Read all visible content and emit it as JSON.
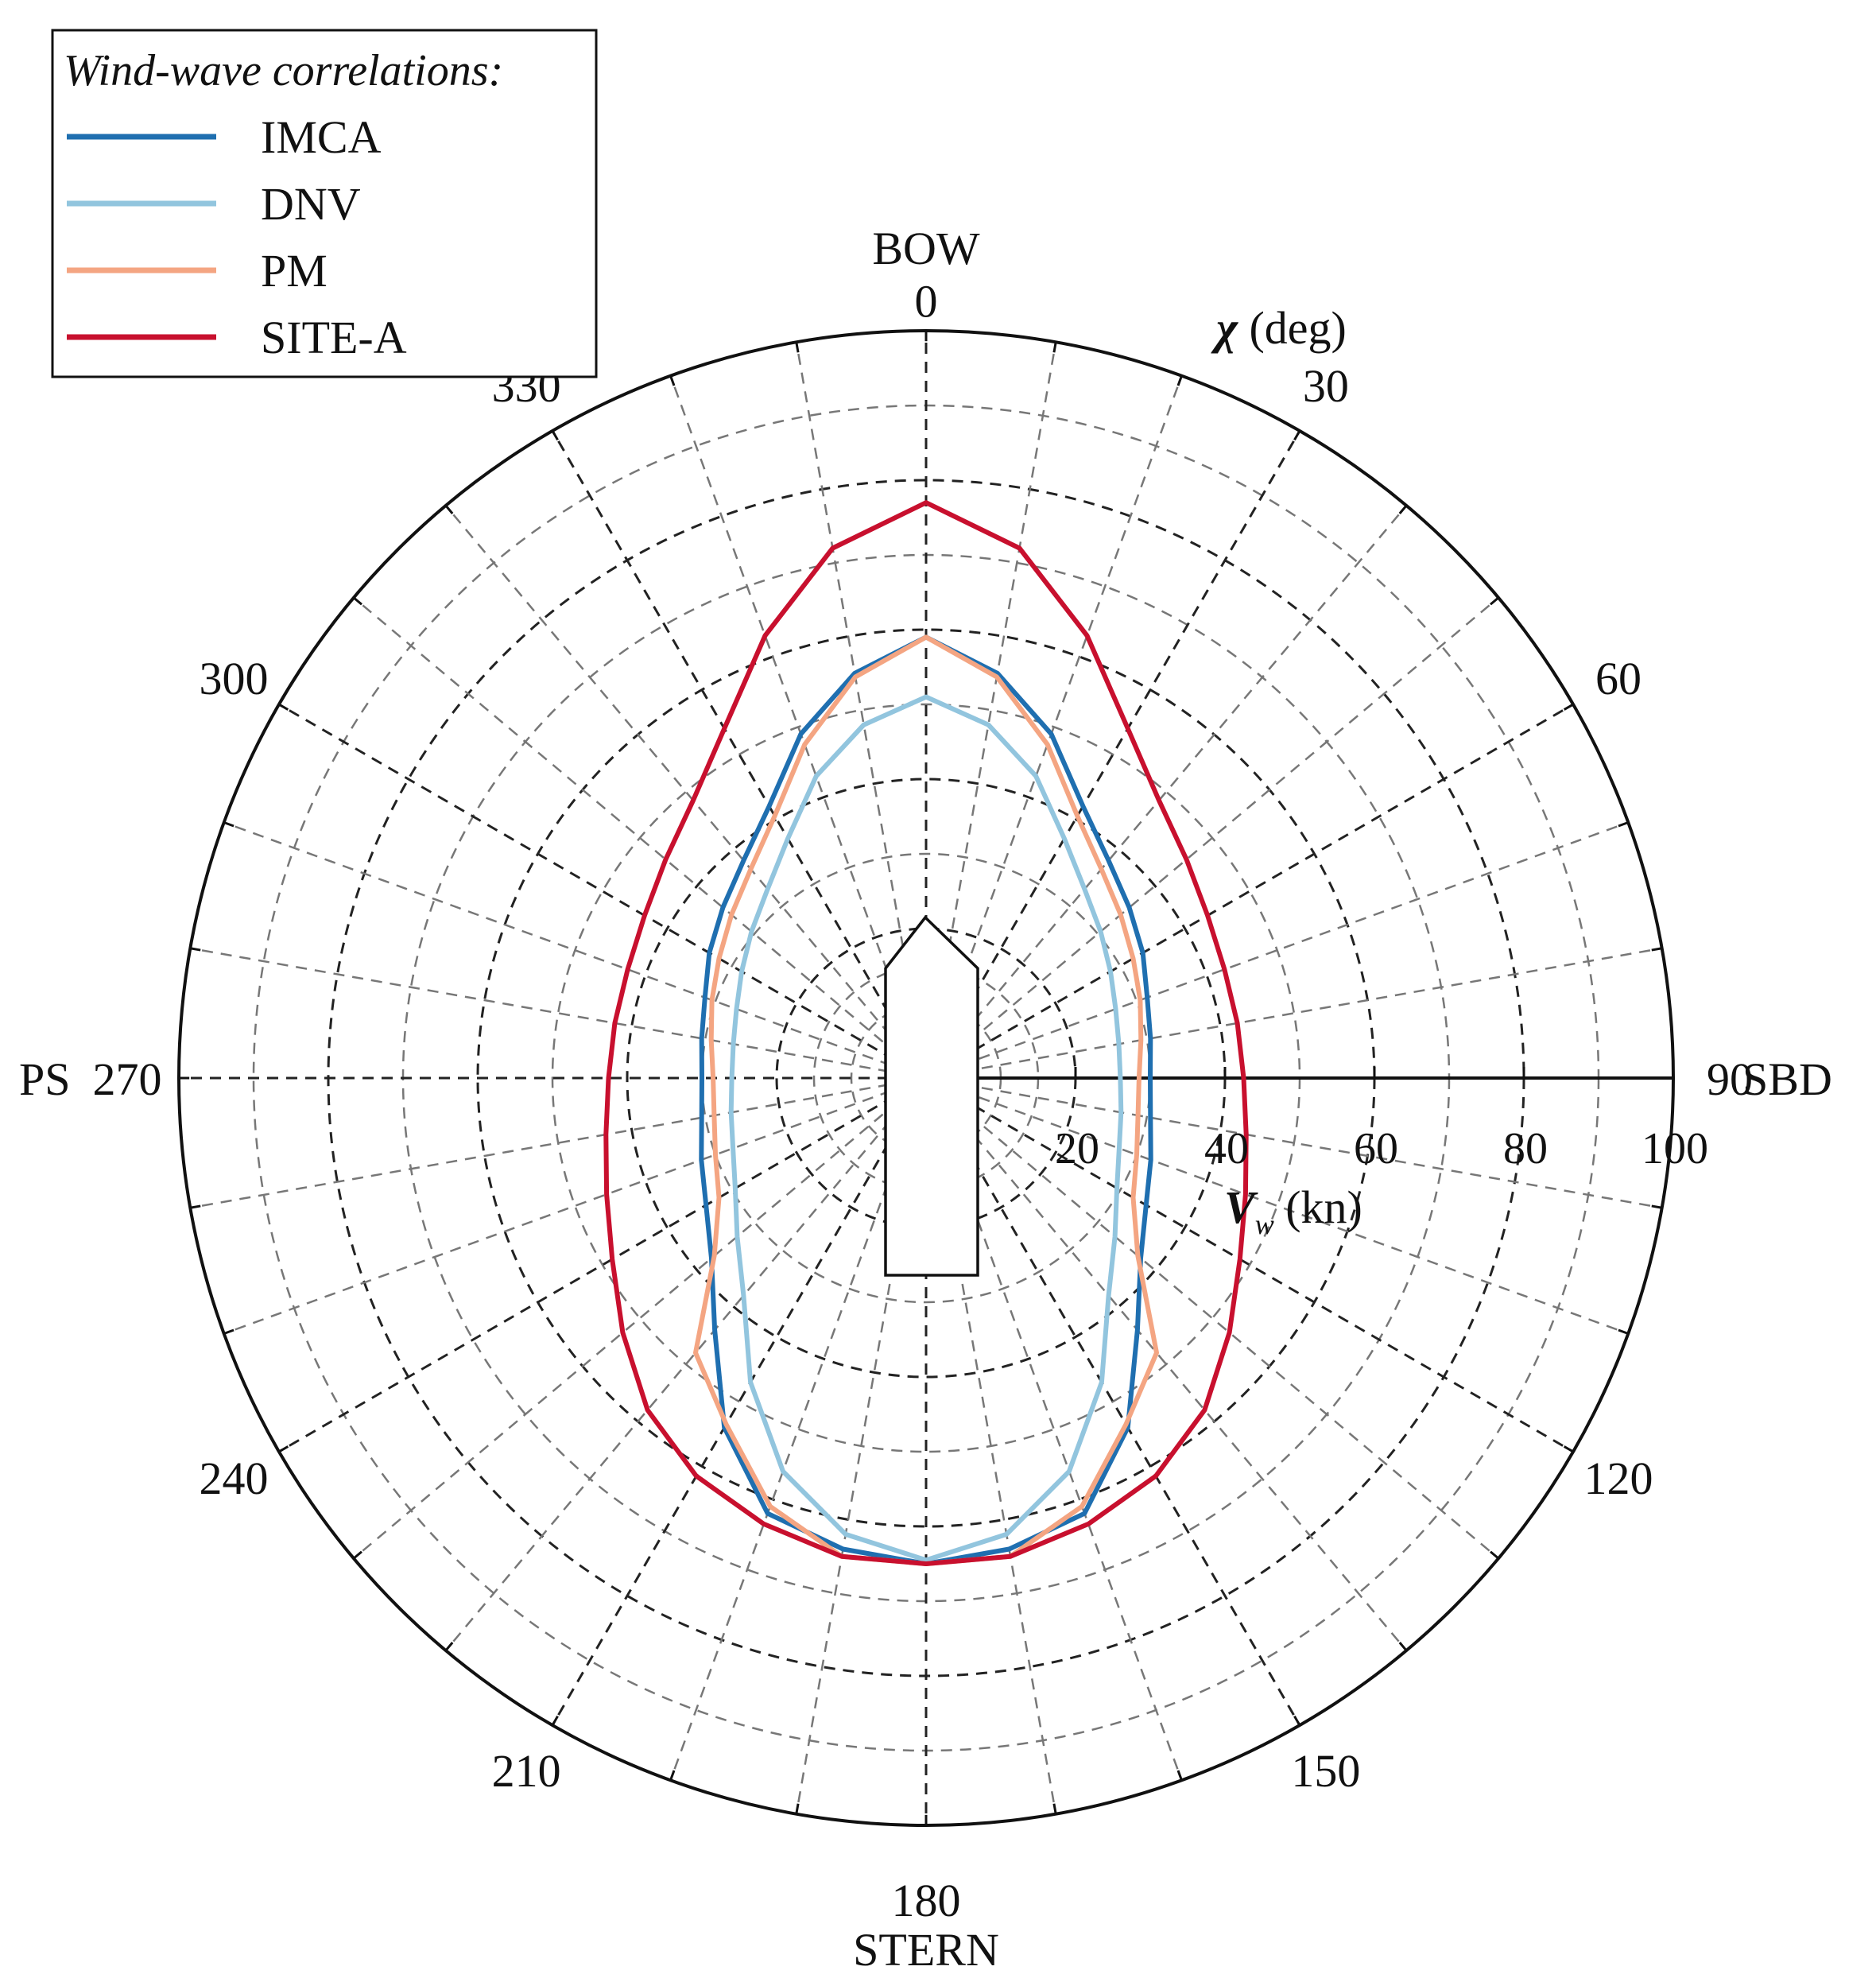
{
  "chart_data": {
    "type": "polar-line",
    "legend": {
      "title": "Wind-wave correlations:",
      "placement": "top-left",
      "entries": [
        {
          "label": "IMCA",
          "color": "#1f6fb0"
        },
        {
          "label": "DNV",
          "color": "#92c5de"
        },
        {
          "label": "PM",
          "color": "#f4a582"
        },
        {
          "label": "SITE-A",
          "color": "#c8102e"
        }
      ]
    },
    "angular_axis": {
      "label_symbol": "χ",
      "label_unit": "(deg)",
      "ticks": [
        0,
        30,
        60,
        90,
        120,
        150,
        180,
        210,
        240,
        270,
        300,
        330
      ],
      "tick_labels": [
        "0",
        "30",
        "60",
        "90",
        "120",
        "150",
        "180",
        "210",
        "240",
        "270",
        "300",
        "330"
      ],
      "direction_labels": {
        "bow": "BOW",
        "stern": "STERN",
        "starboard": "SBD",
        "port": "PS"
      },
      "gridline_step_deg": 10
    },
    "radial_axis": {
      "label_symbol": "V",
      "label_sub": "w",
      "label_unit": "(kn)",
      "range": [
        0,
        100
      ],
      "ticks": [
        20,
        40,
        60,
        80,
        100
      ],
      "tick_labels": [
        "20",
        "40",
        "60",
        "80",
        "100"
      ],
      "dashed_circles": [
        5,
        10,
        15,
        20,
        30,
        40,
        50,
        60,
        70,
        80,
        90
      ]
    },
    "series": [
      {
        "name": "IMCA",
        "color": "#1f6fb0",
        "angles_deg": [
          0,
          10,
          20,
          30,
          40,
          50,
          60,
          70,
          80,
          90,
          100,
          110,
          120,
          130,
          140,
          150,
          160,
          170,
          180
        ],
        "r": [
          59,
          55,
          49,
          42,
          38,
          35.5,
          33.5,
          31.5,
          30.5,
          30,
          30.5,
          32,
          34,
          37.5,
          44,
          54,
          62,
          64,
          65
        ]
      },
      {
        "name": "DNV",
        "color": "#92c5de",
        "angles_deg": [
          0,
          10,
          20,
          30,
          40,
          50,
          60,
          70,
          80,
          90,
          100,
          110,
          120,
          130,
          140,
          150,
          160,
          170,
          180
        ],
        "r": [
          51,
          48,
          43,
          37,
          33,
          30.5,
          28.5,
          27,
          26.2,
          26,
          26.5,
          27.5,
          29.5,
          33,
          38,
          47,
          56,
          62,
          64.5
        ]
      },
      {
        "name": "PM",
        "color": "#f4a582",
        "angles_deg": [
          0,
          10,
          20,
          30,
          40,
          50,
          60,
          70,
          80,
          90,
          100,
          110,
          120,
          130,
          140,
          150,
          160,
          170,
          180
        ],
        "r": [
          59,
          54.5,
          47.5,
          40.5,
          36.5,
          34,
          32,
          30.5,
          29.2,
          28.5,
          28.8,
          30,
          32,
          37,
          48,
          53.5,
          61,
          65,
          65
        ]
      },
      {
        "name": "SITE-A",
        "color": "#c8102e",
        "angles_deg": [
          0,
          10,
          20,
          30,
          40,
          50,
          60,
          70,
          80,
          90,
          100,
          110,
          120,
          130,
          140,
          150,
          160,
          170,
          180
        ],
        "r": [
          77,
          72,
          63,
          54,
          48.5,
          45.5,
          43.5,
          42.5,
          42.3,
          42.5,
          43.5,
          45.5,
          48.5,
          53,
          58,
          61.5,
          63.5,
          65,
          65
        ]
      }
    ],
    "symmetric_about_centerline": true,
    "grid": true
  }
}
